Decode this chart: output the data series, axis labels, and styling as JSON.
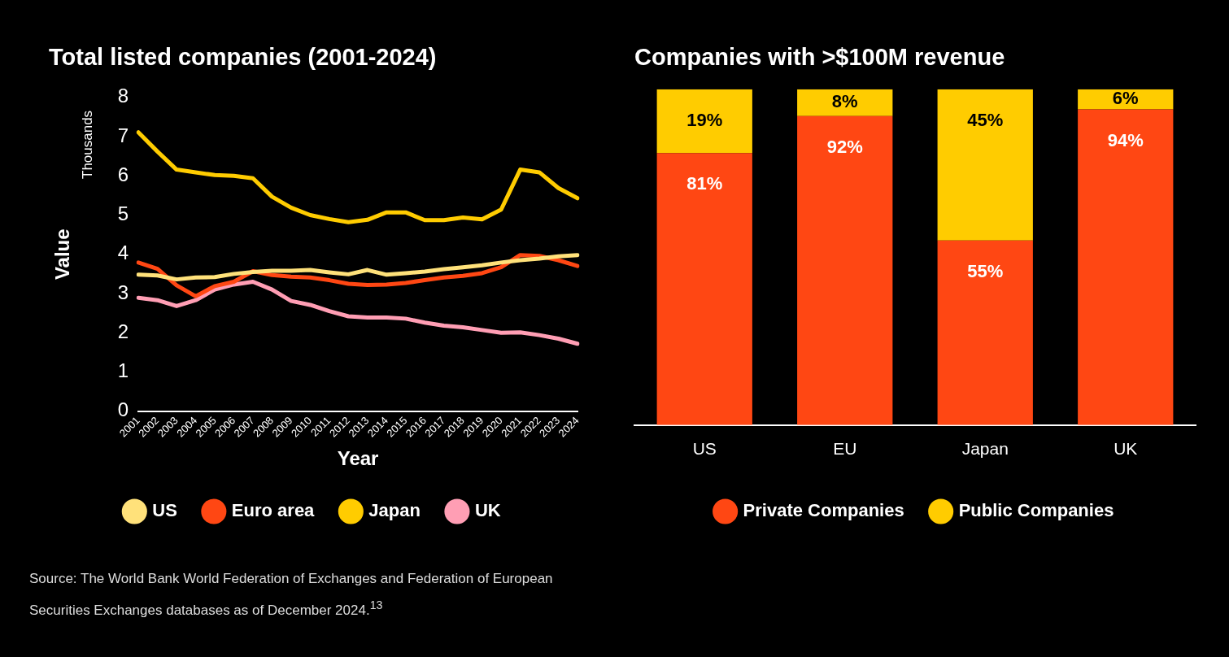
{
  "chart_data": [
    {
      "type": "line",
      "title": "Total listed companies (2001-2024)",
      "xlabel": "Year",
      "ylabel": "Value",
      "categories": [
        "2001",
        "2002",
        "2003",
        "2004",
        "2005",
        "2006",
        "2007",
        "2008",
        "2009",
        "2010",
        "2011",
        "2012",
        "2013",
        "2014",
        "2015",
        "2016",
        "2017",
        "2018",
        "2019",
        "2020",
        "2021",
        "2022",
        "2023",
        "2024"
      ],
      "series": [
        {
          "name": "US",
          "color": "#ffe17a",
          "values": [
            3.48,
            3.46,
            3.36,
            3.41,
            3.42,
            3.5,
            3.55,
            3.58,
            3.58,
            3.6,
            3.54,
            3.49,
            3.6,
            3.48,
            3.52,
            3.56,
            3.62,
            3.67,
            3.72,
            3.79,
            3.85,
            3.89,
            3.95,
            3.98
          ]
        },
        {
          "name": "Euro area",
          "color": "#ff4713",
          "values": [
            3.79,
            3.63,
            3.21,
            2.93,
            3.19,
            3.3,
            3.57,
            3.47,
            3.43,
            3.41,
            3.34,
            3.25,
            3.22,
            3.23,
            3.27,
            3.34,
            3.41,
            3.45,
            3.52,
            3.67,
            3.98,
            3.96,
            3.85,
            3.7
          ]
        },
        {
          "name": "Japan",
          "color": "#ffcc00",
          "values": [
            7.11,
            6.62,
            6.16,
            6.09,
            6.02,
            6.0,
            5.94,
            5.47,
            5.19,
            5.0,
            4.9,
            4.82,
            4.88,
            5.07,
            5.07,
            4.87,
            4.87,
            4.94,
            4.89,
            5.14,
            6.16,
            6.09,
            5.69,
            5.43
          ]
        },
        {
          "name": "UK",
          "color": "#ff9eb4",
          "values": [
            2.89,
            2.83,
            2.68,
            2.83,
            3.1,
            3.23,
            3.3,
            3.1,
            2.81,
            2.71,
            2.55,
            2.42,
            2.39,
            2.39,
            2.36,
            2.26,
            2.18,
            2.14,
            2.07,
            2.0,
            2.01,
            1.94,
            1.85,
            1.72
          ]
        }
      ],
      "ylim": [
        0,
        8
      ],
      "yticks": [
        0,
        1,
        2,
        3,
        4,
        5,
        6,
        7,
        8
      ],
      "grid": false,
      "legend": "bottom",
      "marker": "none",
      "line_style": "solid",
      "annotations": [
        "Thousands",
        "Source: The World Bank World Federation of Exchanges and Federation of European Securities Exchanges databases as of December 2024.$^{13}$"
      ]
    },
    {
      "type": "bar",
      "title": "Companies with >$100M revenue",
      "categories": [
        "US",
        "EU",
        "Japan",
        "UK"
      ],
      "stacked": true,
      "series": [
        {
          "name": "Private Companies",
          "color": "#ff4713",
          "values": [
            81,
            92,
            55,
            94
          ],
          "value_labels": [
            "81%",
            "92%",
            "55%",
            "94%"
          ]
        },
        {
          "name": "Public Companies",
          "color": "#ffcc00",
          "values": [
            19,
            8,
            45,
            6
          ],
          "value_labels": [
            "19%",
            "8%",
            "45%",
            "6%"
          ]
        }
      ],
      "ylim": [
        0,
        100
      ],
      "tick_labels": "x",
      "grid": false,
      "legend": "bottom"
    }
  ]
}
